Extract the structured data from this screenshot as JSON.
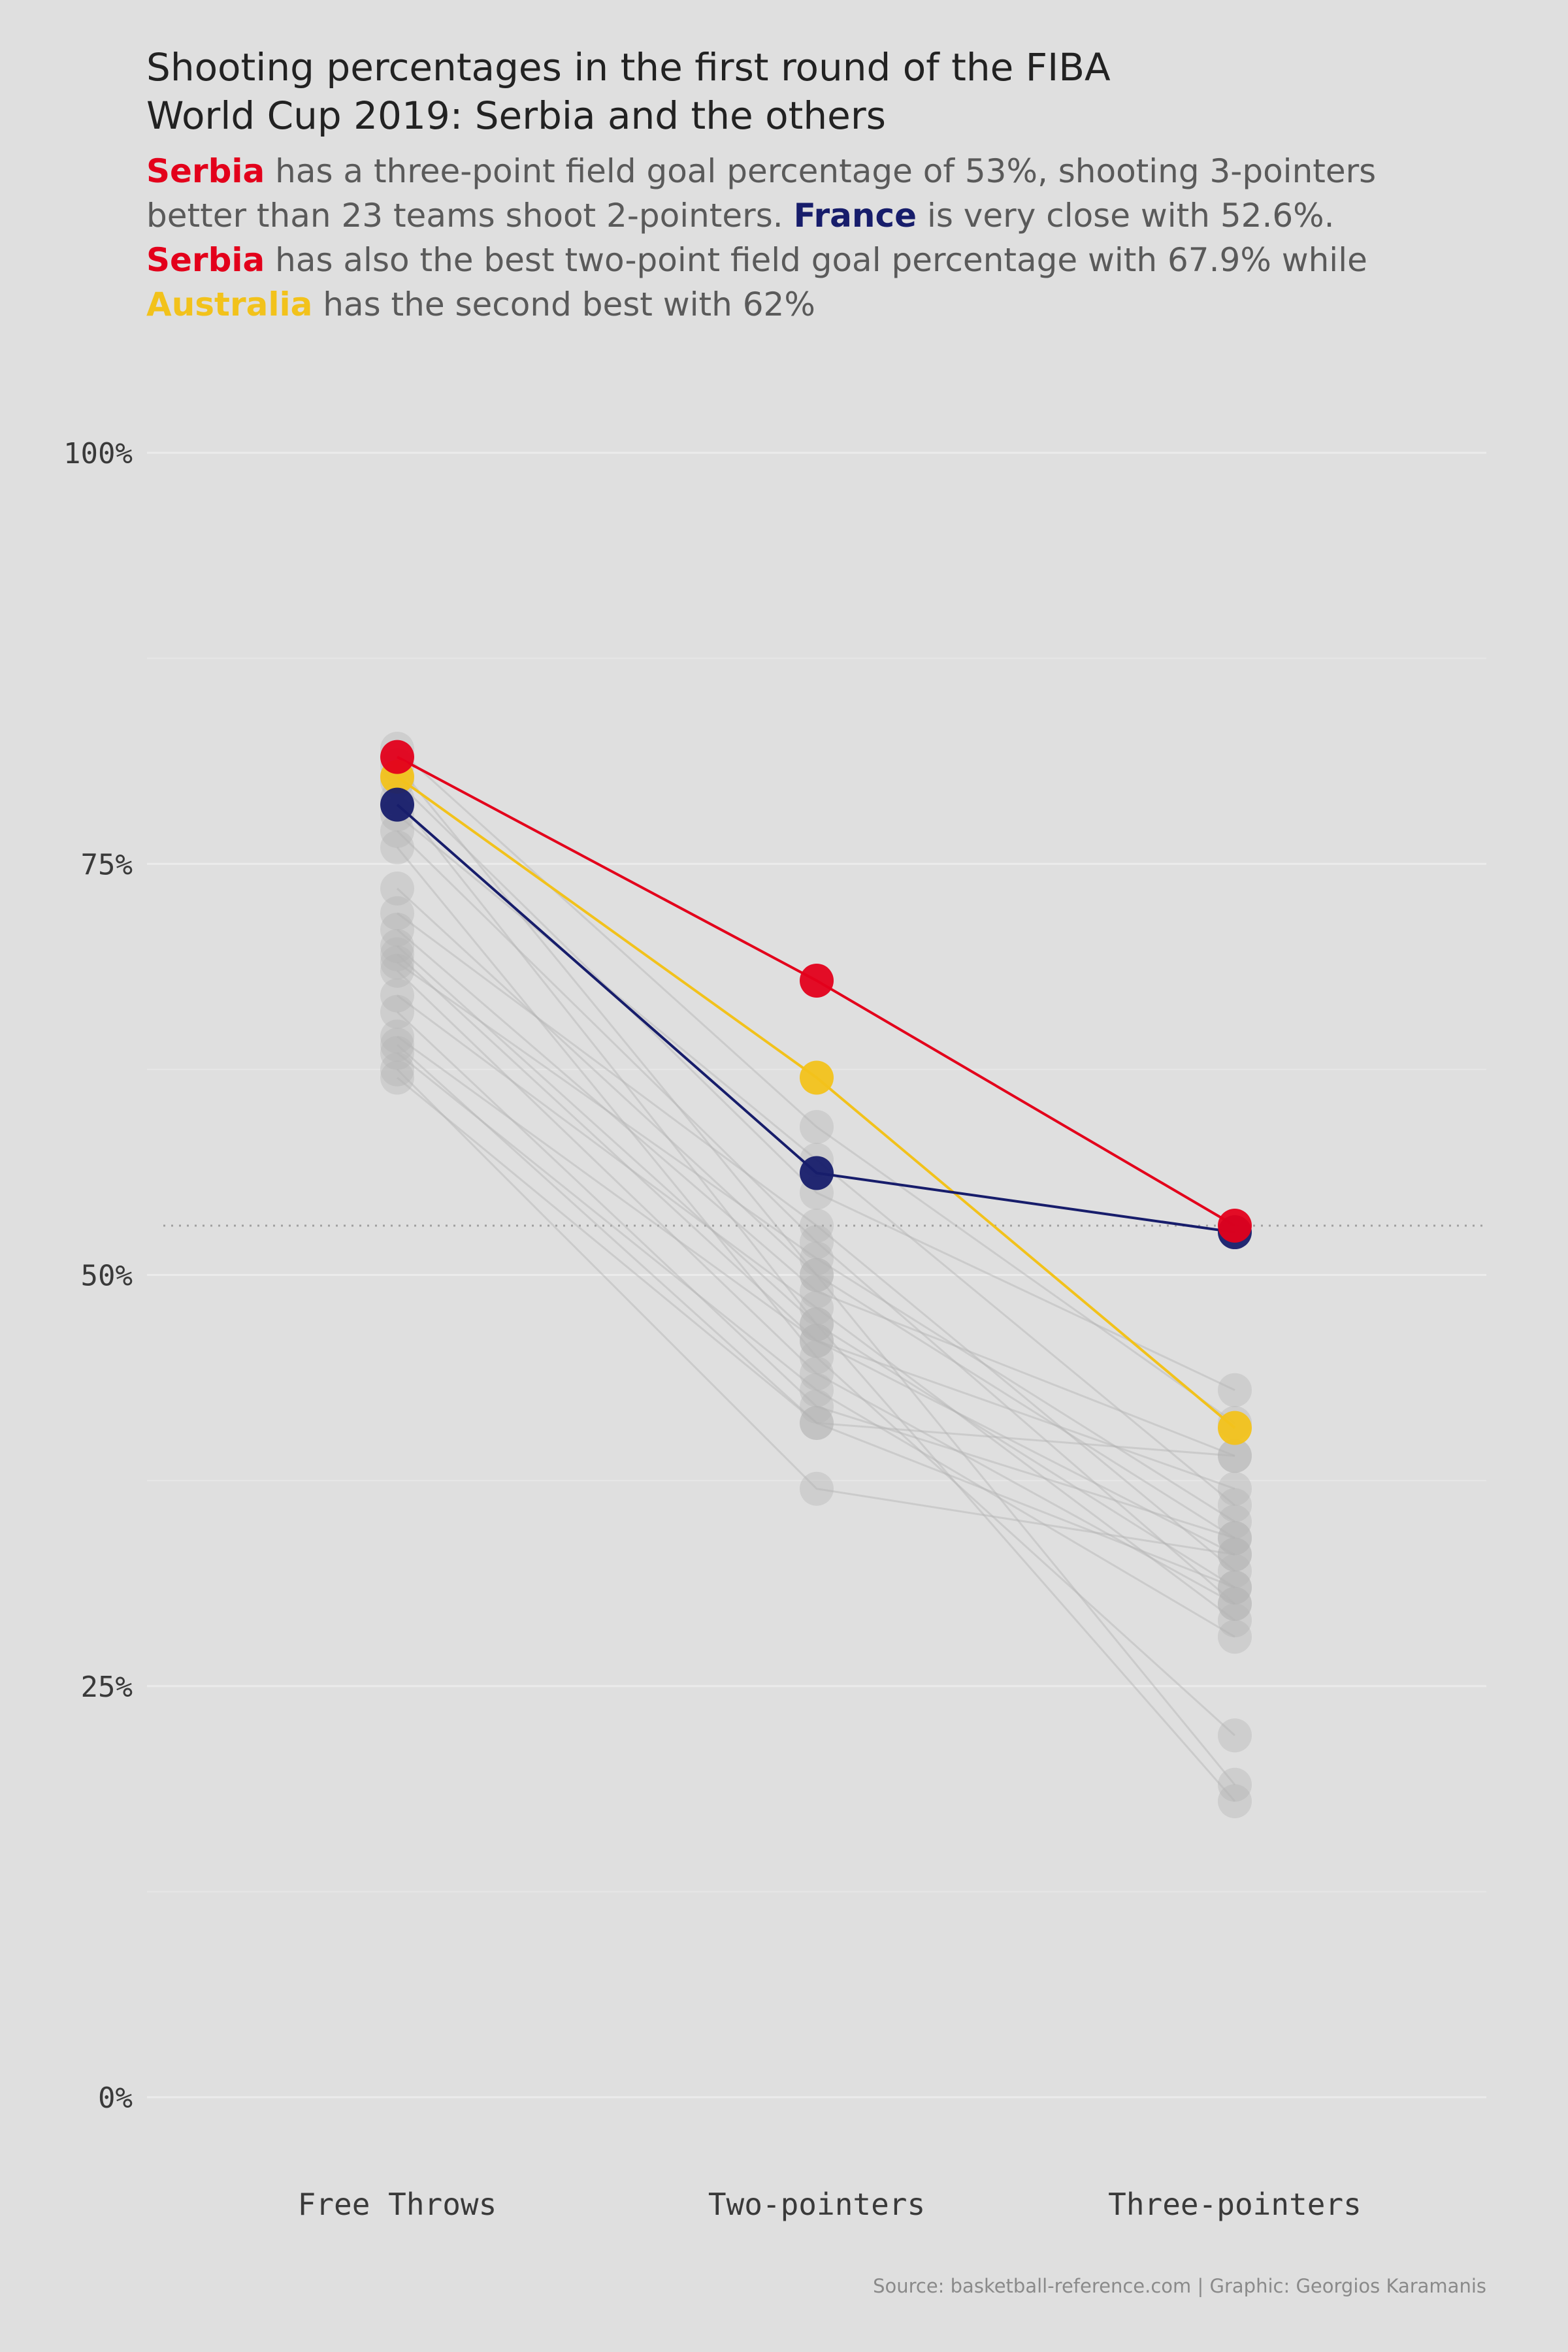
{
  "title_line1": "Shooting percentages in the first round of the FIBA",
  "title_line2": "World Cup 2019: Serbia and the others",
  "subtitle": {
    "p1_serbia": "Serbia",
    "p2": " has a three-point field goal percentage of 53%, shooting 3-pointers better than 23 teams shoot 2-pointers. ",
    "p3_france": "France",
    "p4": " is very close with 52.6%. ",
    "p5_serbia": "Serbia",
    "p6": " has also the best two-point field goal percentage with 67.9% while ",
    "p7_australia": "Australia",
    "p8": " has the second best with 62%"
  },
  "caption": "Source: basketball-reference.com | Graphic: Georgios Karamanis",
  "colors": {
    "background": "#dfdfdf",
    "serbia": "#e3001b",
    "france": "#171d6b",
    "australia": "#f2c21b",
    "others": "#b4b4b4"
  },
  "chart_data": {
    "type": "line",
    "categories": [
      "Free Throws",
      "Two-pointers",
      "Three-pointers"
    ],
    "ylim": [
      0,
      1
    ],
    "yticks": [
      0,
      0.25,
      0.5,
      0.75,
      1
    ],
    "ytick_labels": [
      "0%",
      "25%",
      "50%",
      "75%",
      "100%"
    ],
    "reference_line": 0.53,
    "highlighted": [
      {
        "name": "Serbia",
        "values": [
          0.815,
          0.679,
          0.53
        ],
        "color": "#e3001b"
      },
      {
        "name": "France",
        "values": [
          0.786,
          0.562,
          0.526
        ],
        "color": "#171d6b"
      },
      {
        "name": "Australia",
        "values": [
          0.803,
          0.62,
          0.407
        ],
        "color": "#f2c21b"
      }
    ],
    "others": [
      [
        0.82,
        0.59,
        0.41
      ],
      [
        0.81,
        0.5,
        0.19
      ],
      [
        0.8,
        0.55,
        0.43
      ],
      [
        0.79,
        0.47,
        0.18
      ],
      [
        0.78,
        0.57,
        0.36
      ],
      [
        0.77,
        0.52,
        0.3
      ],
      [
        0.76,
        0.45,
        0.22
      ],
      [
        0.735,
        0.5,
        0.34
      ],
      [
        0.72,
        0.53,
        0.32
      ],
      [
        0.71,
        0.49,
        0.39
      ],
      [
        0.7,
        0.47,
        0.31
      ],
      [
        0.695,
        0.46,
        0.33
      ],
      [
        0.69,
        0.51,
        0.35
      ],
      [
        0.685,
        0.44,
        0.3
      ],
      [
        0.67,
        0.48,
        0.29
      ],
      [
        0.66,
        0.42,
        0.34
      ],
      [
        0.645,
        0.46,
        0.37
      ],
      [
        0.64,
        0.41,
        0.39
      ],
      [
        0.635,
        0.43,
        0.28
      ],
      [
        0.625,
        0.37,
        0.33
      ],
      [
        0.62,
        0.41,
        0.31
      ]
    ]
  }
}
